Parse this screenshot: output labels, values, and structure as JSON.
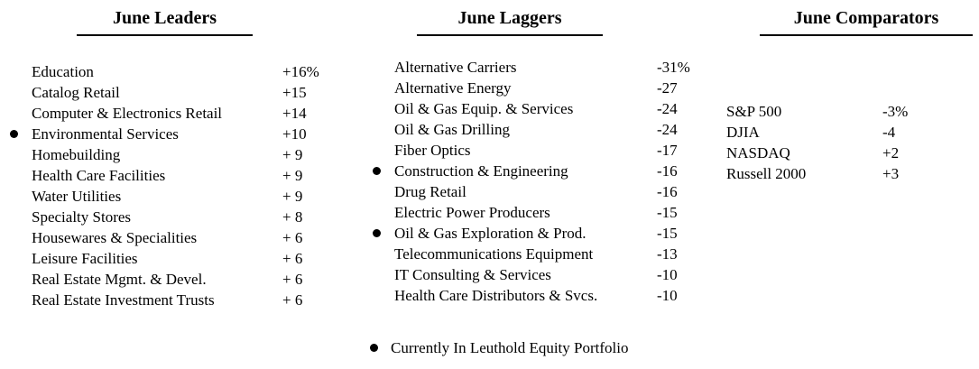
{
  "page": {
    "background": "#ffffff",
    "text_color": "#000000",
    "bullet_color": "#000000"
  },
  "sections": [
    {
      "id": "leaders",
      "title": "June Leaders",
      "rows": [
        {
          "bullet": false,
          "name": "Education",
          "value": "+16%"
        },
        {
          "bullet": false,
          "name": "Catalog Retail",
          "value": "+15"
        },
        {
          "bullet": false,
          "name": "Computer & Electronics Retail",
          "value": "+14"
        },
        {
          "bullet": true,
          "name": "Environmental Services",
          "value": "+10"
        },
        {
          "bullet": false,
          "name": "Homebuilding",
          "value": "+ 9"
        },
        {
          "bullet": false,
          "name": "Health Care Facilities",
          "value": "+ 9"
        },
        {
          "bullet": false,
          "name": "Water Utilities",
          "value": "+ 9"
        },
        {
          "bullet": false,
          "name": "Specialty Stores",
          "value": "+ 8"
        },
        {
          "bullet": false,
          "name": "Housewares & Specialities",
          "value": "+ 6"
        },
        {
          "bullet": false,
          "name": "Leisure Facilities",
          "value": "+ 6"
        },
        {
          "bullet": false,
          "name": "Real Estate Mgmt. & Devel.",
          "value": "+ 6"
        },
        {
          "bullet": false,
          "name": "Real Estate Investment Trusts",
          "value": "+ 6"
        }
      ]
    },
    {
      "id": "laggers",
      "title": "June Laggers",
      "rows": [
        {
          "bullet": false,
          "name": "Alternative Carriers",
          "value": "-31%"
        },
        {
          "bullet": false,
          "name": "Alternative Energy",
          "value": "-27"
        },
        {
          "bullet": false,
          "name": "Oil & Gas Equip. & Services",
          "value": "-24"
        },
        {
          "bullet": false,
          "name": "Oil & Gas Drilling",
          "value": "-24"
        },
        {
          "bullet": false,
          "name": "Fiber Optics",
          "value": "-17"
        },
        {
          "bullet": true,
          "name": "Construction & Engineering",
          "value": "-16"
        },
        {
          "bullet": false,
          "name": "Drug Retail",
          "value": "-16"
        },
        {
          "bullet": false,
          "name": "Electric Power Producers",
          "value": "-15"
        },
        {
          "bullet": true,
          "name": "Oil & Gas Exploration & Prod.",
          "value": "-15"
        },
        {
          "bullet": false,
          "name": "Telecommunications Equipment",
          "value": "-13"
        },
        {
          "bullet": false,
          "name": "IT Consulting & Services",
          "value": "-10"
        },
        {
          "bullet": false,
          "name": "Health Care Distributors & Svcs.",
          "value": "-10"
        }
      ]
    },
    {
      "id": "comparators",
      "title": "June Comparators",
      "rows": [
        {
          "bullet": false,
          "name": "S&P 500",
          "value": "-3%"
        },
        {
          "bullet": false,
          "name": "DJIA",
          "value": "-4"
        },
        {
          "bullet": false,
          "name": "NASDAQ",
          "value": "+2"
        },
        {
          "bullet": false,
          "name": "Russell 2000",
          "value": "+3"
        }
      ]
    }
  ],
  "footnote": {
    "text": "Currently In Leuthold Equity Portfolio"
  }
}
